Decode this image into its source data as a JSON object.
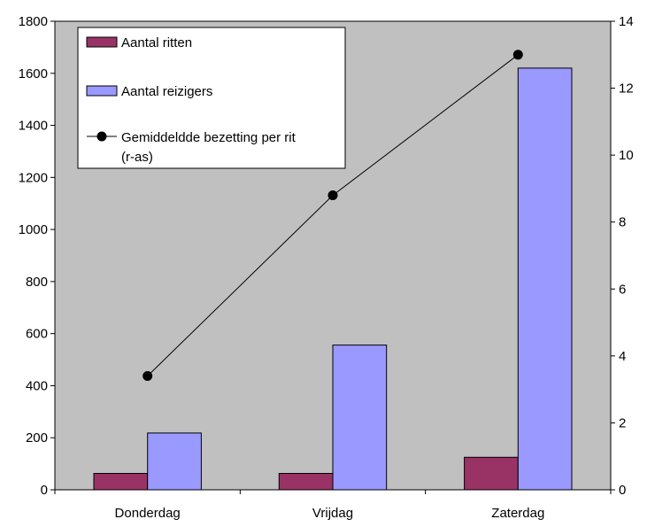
{
  "chart_data": {
    "type": "bar",
    "categories": [
      "Donderdag",
      "Vrijdag",
      "Zaterdag"
    ],
    "series": [
      {
        "name": "Aantal ritten",
        "kind": "bar",
        "axis": "left",
        "color": "#993366",
        "values": [
          63,
          63,
          125
        ]
      },
      {
        "name": "Aantal reizigers",
        "kind": "bar",
        "axis": "left",
        "color": "#9999ff",
        "values": [
          218,
          556,
          1620
        ]
      },
      {
        "name": "Gemiddeldde bezetting per rit (r-as)",
        "kind": "line",
        "axis": "right",
        "color": "#000000",
        "values": [
          3.4,
          8.8,
          13.0
        ]
      }
    ],
    "legend_lines": [
      [
        "Aantal ritten"
      ],
      [
        "Aantal reizigers"
      ],
      [
        "Gemiddeldde bezetting per rit",
        "(r-as)"
      ]
    ],
    "title": "",
    "xlabel": "",
    "ylabel": "",
    "y2label": "",
    "ylim": [
      0,
      1800
    ],
    "y2lim": [
      0,
      14
    ],
    "yticks": [
      "0",
      "200",
      "400",
      "600",
      "800",
      "1000",
      "1200",
      "1400",
      "1600",
      "1800"
    ],
    "y2ticks": [
      "0",
      "2",
      "4",
      "6",
      "8",
      "10",
      "12",
      "14"
    ],
    "legend_position": "top-left",
    "grid": false,
    "plot_background": "#c0c0c0"
  }
}
